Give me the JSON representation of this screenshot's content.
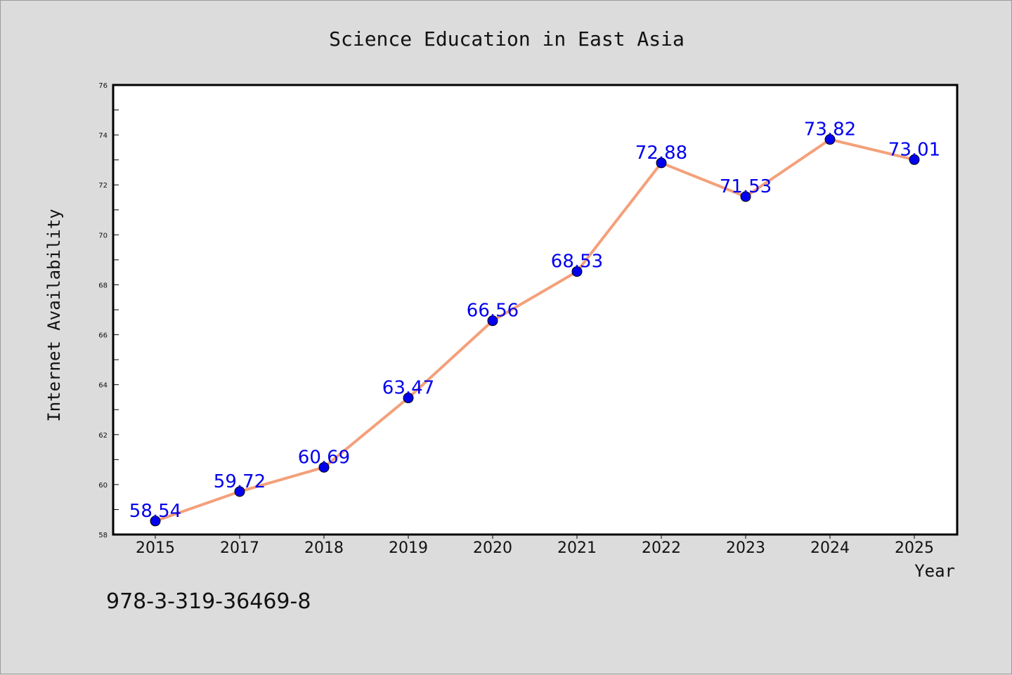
{
  "chart_data": {
    "type": "line",
    "title": "Science Education in East Asia",
    "xlabel": "Year",
    "ylabel": "Internet Availability",
    "categories": [
      "2015",
      "2017",
      "2018",
      "2019",
      "2020",
      "2021",
      "2022",
      "2023",
      "2024",
      "2025"
    ],
    "series": [
      {
        "values": [
          58.54,
          59.72,
          60.69,
          63.47,
          66.56,
          68.53,
          72.88,
          71.53,
          73.82,
          73.01
        ],
        "labels": [
          "58.54",
          "59.72",
          "60.69",
          "63.47",
          "66.56",
          "68.53",
          "72.88",
          "71.53",
          "73.82",
          "73.01"
        ],
        "line_color": "#f4a07a",
        "marker_color": "#0000ee",
        "label_color": "#0000ee"
      }
    ],
    "ylim": [
      58,
      76
    ],
    "yticks": [
      "58",
      "60",
      "62",
      "64",
      "66",
      "68",
      "70",
      "72",
      "74",
      "76"
    ],
    "grid": false,
    "legend": "none"
  },
  "annotation": "978-3-319-36469-8",
  "colors": {
    "background": "#dcdcdc",
    "plot_background": "#ffffff",
    "axes": "#000000"
  }
}
